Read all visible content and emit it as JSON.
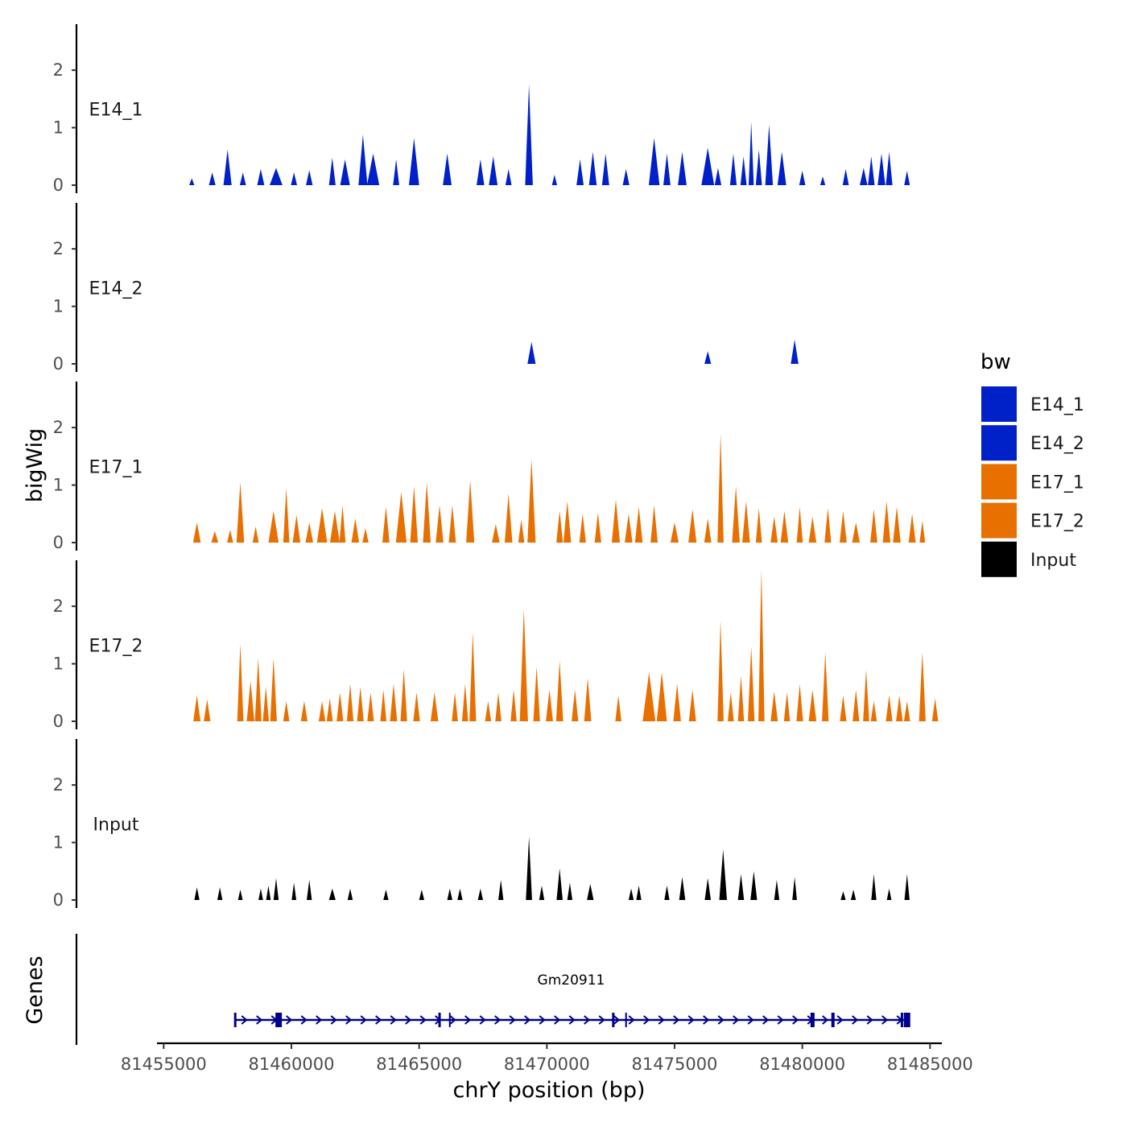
{
  "chart_data": {
    "type": "area",
    "xlabel": "chrY position (bp)",
    "ylabel": "bigWig",
    "xlim": [
      81454800,
      81485400
    ],
    "ylim": [
      0,
      2.8
    ],
    "x_ticks": [
      81455000,
      81460000,
      81465000,
      81470000,
      81475000,
      81480000,
      81485000
    ],
    "x_tick_labels": [
      "81455000",
      "81460000",
      "81465000",
      "81470000",
      "81475000",
      "81480000",
      "81485000"
    ],
    "y_ticks": [
      0,
      1,
      2
    ],
    "y_tick_labels": [
      "0",
      "1",
      "2"
    ],
    "legend": {
      "title": "bw",
      "entries": [
        {
          "label": "E14_1",
          "color": "#0020c8"
        },
        {
          "label": "E14_2",
          "color": "#0020c8"
        },
        {
          "label": "E17_1",
          "color": "#e87000"
        },
        {
          "label": "E17_2",
          "color": "#e87000"
        },
        {
          "label": "Input",
          "color": "#000000"
        }
      ]
    },
    "series": [
      {
        "name": "E14_1",
        "color": "#0020c8",
        "peaks": [
          [
            81456100,
            0.12,
            200
          ],
          [
            81456900,
            0.22,
            260
          ],
          [
            81457500,
            0.62,
            320
          ],
          [
            81458100,
            0.22,
            240
          ],
          [
            81458800,
            0.28,
            280
          ],
          [
            81459400,
            0.3,
            500
          ],
          [
            81460100,
            0.22,
            240
          ],
          [
            81460700,
            0.26,
            260
          ],
          [
            81461600,
            0.48,
            260
          ],
          [
            81462100,
            0.45,
            380
          ],
          [
            81462800,
            0.88,
            350
          ],
          [
            81463200,
            0.55,
            480
          ],
          [
            81464100,
            0.45,
            240
          ],
          [
            81464800,
            0.82,
            400
          ],
          [
            81466100,
            0.55,
            340
          ],
          [
            81467400,
            0.45,
            300
          ],
          [
            81467900,
            0.5,
            340
          ],
          [
            81468500,
            0.28,
            240
          ],
          [
            81469300,
            1.75,
            300
          ],
          [
            81470300,
            0.18,
            200
          ],
          [
            81471300,
            0.45,
            280
          ],
          [
            81471800,
            0.58,
            300
          ],
          [
            81472300,
            0.55,
            280
          ],
          [
            81473100,
            0.28,
            260
          ],
          [
            81474200,
            0.82,
            420
          ],
          [
            81474700,
            0.55,
            280
          ],
          [
            81475300,
            0.58,
            340
          ],
          [
            81476300,
            0.65,
            500
          ],
          [
            81476700,
            0.3,
            260
          ],
          [
            81477300,
            0.55,
            260
          ],
          [
            81477700,
            0.5,
            240
          ],
          [
            81478000,
            1.1,
            200
          ],
          [
            81478300,
            0.62,
            240
          ],
          [
            81478700,
            1.05,
            300
          ],
          [
            81479200,
            0.58,
            340
          ],
          [
            81480000,
            0.25,
            240
          ],
          [
            81480800,
            0.15,
            200
          ],
          [
            81481700,
            0.28,
            240
          ],
          [
            81482400,
            0.3,
            300
          ],
          [
            81482700,
            0.5,
            260
          ],
          [
            81483100,
            0.55,
            300
          ],
          [
            81483400,
            0.58,
            260
          ],
          [
            81484100,
            0.25,
            220
          ]
        ]
      },
      {
        "name": "E14_2",
        "color": "#0020c8",
        "peaks": [
          [
            81469400,
            0.38,
            320
          ],
          [
            81476300,
            0.22,
            260
          ],
          [
            81479700,
            0.42,
            300
          ]
        ]
      },
      {
        "name": "E17_1",
        "color": "#e87000",
        "peaks": [
          [
            81456300,
            0.35,
            300
          ],
          [
            81457000,
            0.2,
            280
          ],
          [
            81457600,
            0.22,
            240
          ],
          [
            81458000,
            1.05,
            300
          ],
          [
            81458600,
            0.28,
            240
          ],
          [
            81459300,
            0.55,
            400
          ],
          [
            81459800,
            0.95,
            240
          ],
          [
            81460200,
            0.48,
            300
          ],
          [
            81460700,
            0.35,
            300
          ],
          [
            81461200,
            0.6,
            400
          ],
          [
            81461700,
            0.55,
            380
          ],
          [
            81462000,
            0.65,
            240
          ],
          [
            81462500,
            0.42,
            300
          ],
          [
            81462900,
            0.25,
            240
          ],
          [
            81463700,
            0.62,
            280
          ],
          [
            81464300,
            0.88,
            420
          ],
          [
            81464800,
            0.98,
            300
          ],
          [
            81465300,
            1.05,
            300
          ],
          [
            81465800,
            0.65,
            300
          ],
          [
            81466300,
            0.65,
            280
          ],
          [
            81467000,
            1.08,
            320
          ],
          [
            81468000,
            0.32,
            300
          ],
          [
            81468500,
            0.85,
            300
          ],
          [
            81469000,
            0.4,
            240
          ],
          [
            81469400,
            1.45,
            320
          ],
          [
            81470500,
            0.55,
            260
          ],
          [
            81470800,
            0.72,
            300
          ],
          [
            81471400,
            0.5,
            260
          ],
          [
            81472000,
            0.52,
            260
          ],
          [
            81472700,
            0.75,
            320
          ],
          [
            81473200,
            0.5,
            300
          ],
          [
            81473600,
            0.62,
            300
          ],
          [
            81474200,
            0.65,
            280
          ],
          [
            81475000,
            0.35,
            320
          ],
          [
            81475700,
            0.58,
            320
          ],
          [
            81476300,
            0.42,
            280
          ],
          [
            81476800,
            1.9,
            240
          ],
          [
            81477400,
            0.98,
            300
          ],
          [
            81477800,
            0.72,
            300
          ],
          [
            81478300,
            0.6,
            240
          ],
          [
            81478900,
            0.45,
            280
          ],
          [
            81479300,
            0.55,
            300
          ],
          [
            81479900,
            0.62,
            240
          ],
          [
            81480400,
            0.45,
            300
          ],
          [
            81481000,
            0.6,
            260
          ],
          [
            81481600,
            0.55,
            280
          ],
          [
            81482100,
            0.35,
            300
          ],
          [
            81482800,
            0.58,
            280
          ],
          [
            81483300,
            0.72,
            300
          ],
          [
            81483700,
            0.62,
            300
          ],
          [
            81484300,
            0.5,
            280
          ],
          [
            81484700,
            0.38,
            220
          ]
        ]
      },
      {
        "name": "E17_2",
        "color": "#e87000",
        "peaks": [
          [
            81456300,
            0.45,
            280
          ],
          [
            81456700,
            0.38,
            260
          ],
          [
            81458000,
            1.35,
            240
          ],
          [
            81458400,
            0.7,
            300
          ],
          [
            81458700,
            1.1,
            260
          ],
          [
            81459000,
            0.6,
            240
          ],
          [
            81459300,
            1.1,
            260
          ],
          [
            81459800,
            0.35,
            240
          ],
          [
            81460500,
            0.35,
            260
          ],
          [
            81461200,
            0.35,
            260
          ],
          [
            81461500,
            0.4,
            240
          ],
          [
            81461900,
            0.5,
            260
          ],
          [
            81462300,
            0.65,
            260
          ],
          [
            81462700,
            0.6,
            260
          ],
          [
            81463100,
            0.5,
            260
          ],
          [
            81463600,
            0.55,
            240
          ],
          [
            81464000,
            0.65,
            280
          ],
          [
            81464400,
            0.9,
            260
          ],
          [
            81464900,
            0.5,
            260
          ],
          [
            81465600,
            0.5,
            300
          ],
          [
            81466400,
            0.5,
            240
          ],
          [
            81466800,
            0.65,
            240
          ],
          [
            81467100,
            1.55,
            260
          ],
          [
            81467700,
            0.35,
            240
          ],
          [
            81468100,
            0.5,
            240
          ],
          [
            81468700,
            0.55,
            240
          ],
          [
            81469100,
            1.95,
            320
          ],
          [
            81469600,
            0.95,
            260
          ],
          [
            81470100,
            0.55,
            280
          ],
          [
            81470500,
            1.05,
            280
          ],
          [
            81471100,
            0.55,
            260
          ],
          [
            81471600,
            0.75,
            280
          ],
          [
            81472800,
            0.45,
            240
          ],
          [
            81474000,
            0.85,
            500
          ],
          [
            81474500,
            0.85,
            400
          ],
          [
            81475100,
            0.65,
            300
          ],
          [
            81475700,
            0.55,
            280
          ],
          [
            81476800,
            1.75,
            240
          ],
          [
            81477200,
            0.5,
            240
          ],
          [
            81477600,
            0.8,
            240
          ],
          [
            81478000,
            1.3,
            260
          ],
          [
            81478400,
            2.65,
            240
          ],
          [
            81478900,
            0.52,
            280
          ],
          [
            81479400,
            0.5,
            240
          ],
          [
            81479900,
            0.65,
            260
          ],
          [
            81480400,
            0.55,
            300
          ],
          [
            81480900,
            1.2,
            260
          ],
          [
            81481600,
            0.45,
            260
          ],
          [
            81482100,
            0.55,
            260
          ],
          [
            81482500,
            0.9,
            240
          ],
          [
            81482800,
            0.35,
            240
          ],
          [
            81483400,
            0.45,
            260
          ],
          [
            81483800,
            0.45,
            260
          ],
          [
            81484100,
            0.35,
            240
          ],
          [
            81484700,
            1.2,
            260
          ],
          [
            81485200,
            0.4,
            240
          ]
        ]
      },
      {
        "name": "Input",
        "color": "#000000",
        "peaks": [
          [
            81456300,
            0.22,
            200
          ],
          [
            81457200,
            0.22,
            200
          ],
          [
            81458000,
            0.18,
            180
          ],
          [
            81458800,
            0.2,
            180
          ],
          [
            81459100,
            0.25,
            180
          ],
          [
            81459400,
            0.38,
            200
          ],
          [
            81460100,
            0.3,
            180
          ],
          [
            81460700,
            0.35,
            200
          ],
          [
            81461600,
            0.2,
            260
          ],
          [
            81462300,
            0.2,
            200
          ],
          [
            81463700,
            0.18,
            200
          ],
          [
            81465100,
            0.18,
            200
          ],
          [
            81466200,
            0.2,
            200
          ],
          [
            81466600,
            0.2,
            200
          ],
          [
            81467400,
            0.2,
            200
          ],
          [
            81468200,
            0.35,
            200
          ],
          [
            81469300,
            1.1,
            240
          ],
          [
            81469800,
            0.25,
            200
          ],
          [
            81470500,
            0.55,
            240
          ],
          [
            81470900,
            0.3,
            200
          ],
          [
            81471700,
            0.28,
            260
          ],
          [
            81473300,
            0.2,
            200
          ],
          [
            81473600,
            0.25,
            200
          ],
          [
            81474700,
            0.25,
            200
          ],
          [
            81475300,
            0.4,
            240
          ],
          [
            81476300,
            0.38,
            240
          ],
          [
            81476900,
            0.88,
            300
          ],
          [
            81477600,
            0.45,
            240
          ],
          [
            81478100,
            0.5,
            260
          ],
          [
            81479000,
            0.35,
            200
          ],
          [
            81479700,
            0.4,
            180
          ],
          [
            81481600,
            0.15,
            200
          ],
          [
            81482000,
            0.18,
            200
          ],
          [
            81482800,
            0.45,
            200
          ],
          [
            81483400,
            0.2,
            180
          ],
          [
            81484100,
            0.45,
            200
          ]
        ]
      }
    ],
    "genes": {
      "title": "Genes",
      "label": "Gm20911",
      "start": 81457800,
      "end": 81484100,
      "exons": [
        81457800,
        81459500,
        81465800,
        81466200,
        81472600,
        81473100,
        81480400,
        81481200,
        81483900,
        81484100
      ]
    }
  }
}
